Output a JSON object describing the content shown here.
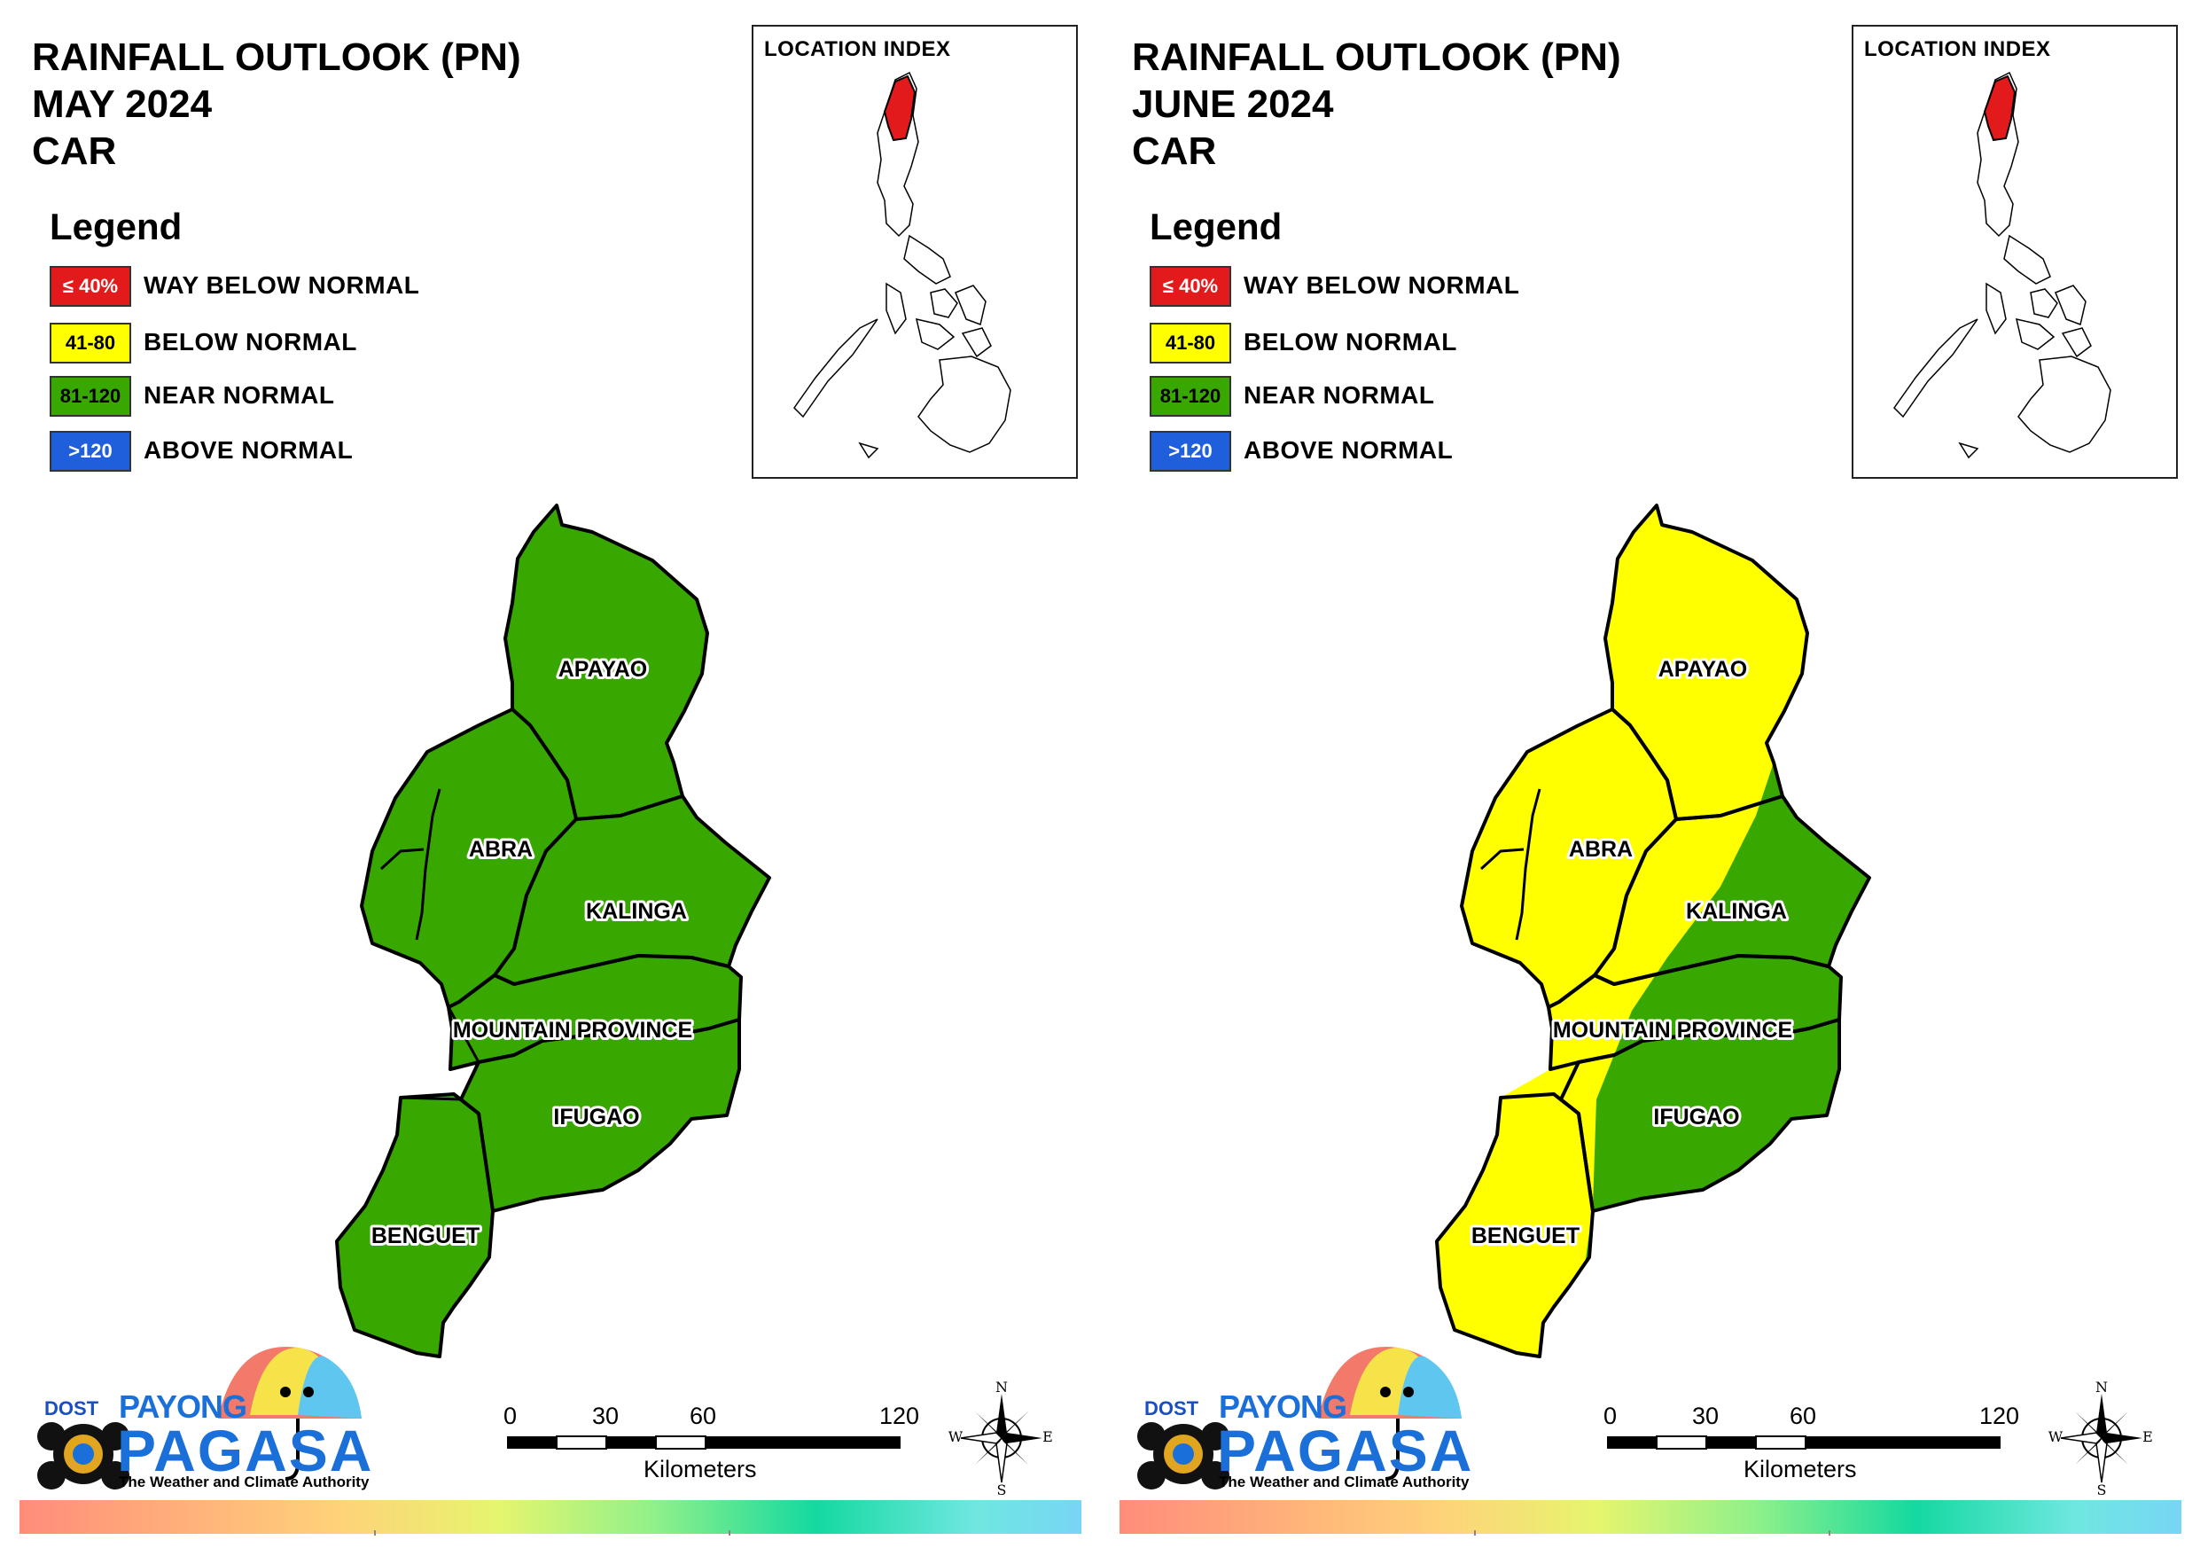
{
  "colors": {
    "way_below": "#e31a1c",
    "below": "#ffff00",
    "near": "#38a800",
    "above": "#1f5fdc",
    "outline": "#000000"
  },
  "legend": {
    "title": "Legend",
    "items": [
      {
        "range": "≤ 40%",
        "label": "WAY BELOW NORMAL"
      },
      {
        "range": "41-80",
        "label": "BELOW NORMAL"
      },
      {
        "range": "81-120",
        "label": "NEAR NORMAL"
      },
      {
        "range": ">120",
        "label": "ABOVE NORMAL"
      }
    ]
  },
  "location_index": {
    "title": "LOCATION INDEX"
  },
  "provinces": {
    "apayao": "APAYAO",
    "abra": "ABRA",
    "kalinga": "KALINGA",
    "mountain_province": "MOUNTAIN PROVINCE",
    "ifugao": "IFUGAO",
    "benguet": "BENGUET"
  },
  "panels": [
    {
      "title_line1": "RAINFALL OUTLOOK (PN)",
      "title_line2": "MAY 2024",
      "title_line3": "CAR",
      "classification": {
        "apayao": "near",
        "abra": "near",
        "kalinga": "near",
        "mountain_province": "near",
        "ifugao": "near",
        "benguet": "near"
      }
    },
    {
      "title_line1": "RAINFALL OUTLOOK (PN)",
      "title_line2": "JUNE 2024",
      "title_line3": "CAR",
      "classification": {
        "apayao": "below",
        "abra": "below",
        "kalinga": "near (partly below)",
        "mountain_province": "near (partly below)",
        "ifugao": "near",
        "benguet": "below"
      }
    }
  ],
  "scalebar": {
    "ticks": [
      "0",
      "30",
      "60",
      "120"
    ],
    "units": "Kilometers"
  },
  "compass": {
    "n": "N",
    "e": "E",
    "s": "S",
    "w": "W"
  },
  "logo": {
    "agency": "DOST",
    "brand_top": "PAYONG",
    "brand_main": "PAGASA",
    "tagline": "The Weather and Climate Authority"
  }
}
